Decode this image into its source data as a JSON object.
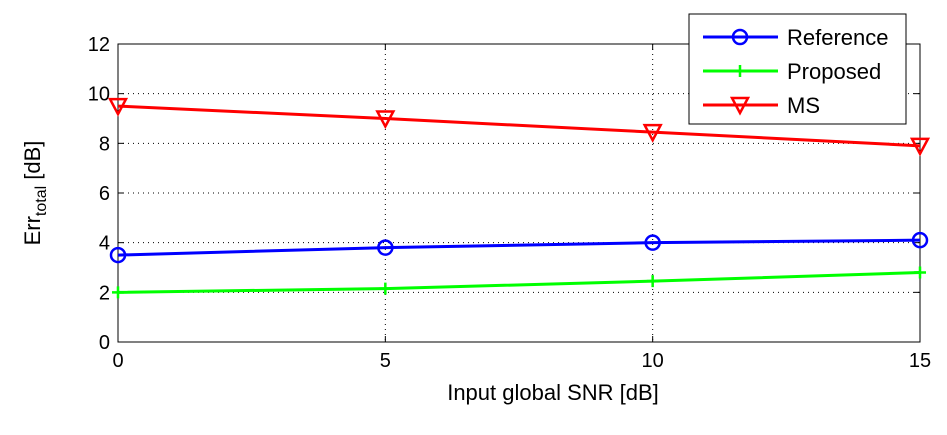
{
  "chart_data": {
    "type": "line",
    "title": "",
    "xlabel": "Input global SNR [dB]",
    "ylabel_main": "Err",
    "ylabel_sub": "total",
    "ylabel_unit": " [dB]",
    "x": [
      0,
      5,
      10,
      15
    ],
    "xlim": [
      0,
      15
    ],
    "ylim": [
      0,
      12
    ],
    "xticks": [
      0,
      5,
      10,
      15
    ],
    "yticks": [
      0,
      2,
      4,
      6,
      8,
      10,
      12
    ],
    "grid": true,
    "legend_position": "top-right",
    "series": [
      {
        "name": "Reference",
        "values": [
          3.5,
          3.8,
          4.0,
          4.1
        ],
        "color": "#0000ff",
        "marker": "circle"
      },
      {
        "name": "Proposed",
        "values": [
          2.0,
          2.15,
          2.45,
          2.8
        ],
        "color": "#00ff00",
        "marker": "plus"
      },
      {
        "name": "MS",
        "values": [
          9.5,
          9.0,
          8.45,
          7.9
        ],
        "color": "#ff0000",
        "marker": "triangle-down"
      }
    ]
  }
}
